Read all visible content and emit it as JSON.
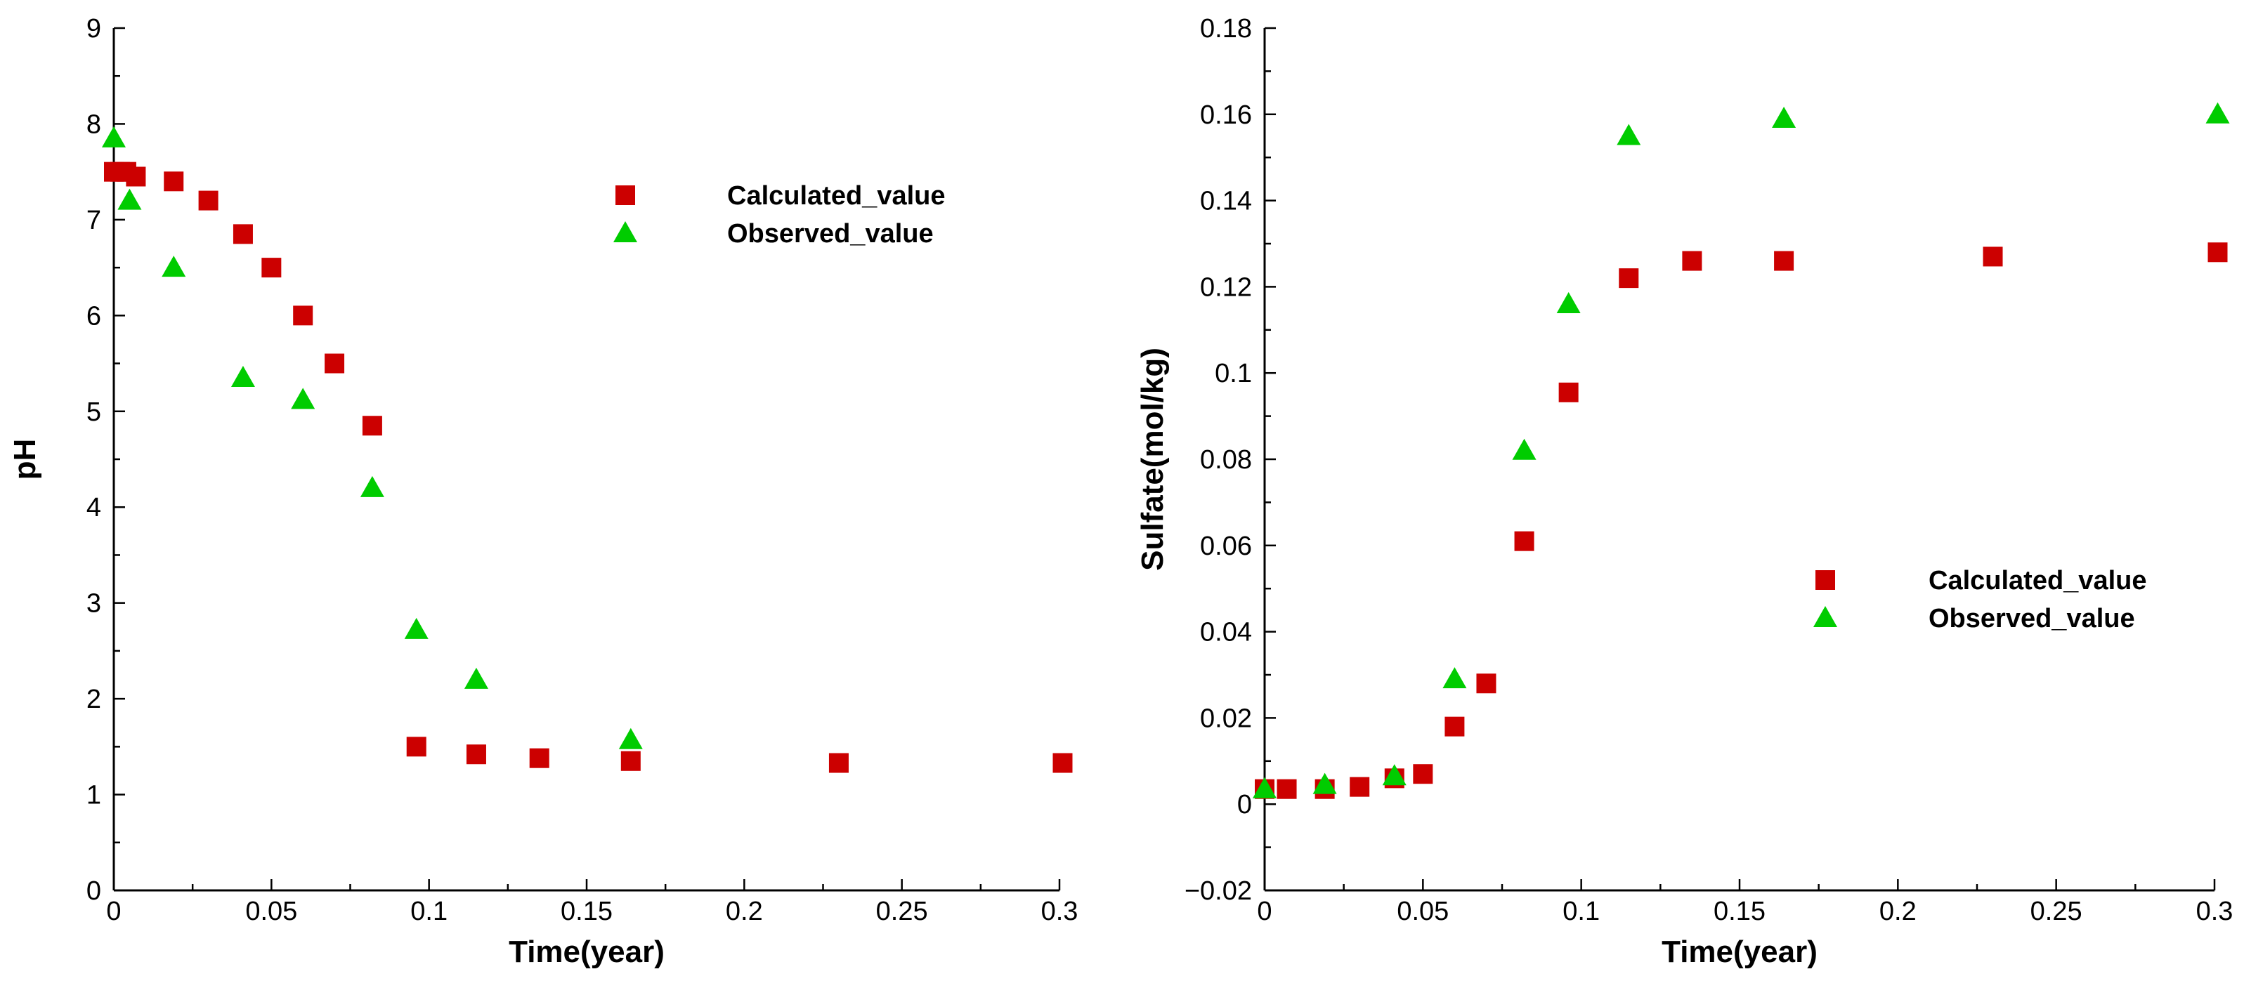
{
  "chart_data": [
    {
      "type": "scatter",
      "title": "",
      "xlabel": "Time(year)",
      "ylabel": "pH",
      "xlim": [
        0,
        0.3
      ],
      "ylim": [
        0,
        9
      ],
      "xticks": [
        "0",
        "0.05",
        "0.1",
        "0.15",
        "0.2",
        "0.25",
        "0.3"
      ],
      "yticks": [
        "0",
        "1",
        "2",
        "3",
        "4",
        "5",
        "6",
        "7",
        "8",
        "9"
      ],
      "grid": false,
      "legend_position": "top-right",
      "series": [
        {
          "name": "Calculated_value",
          "marker": "square",
          "color": "#cc0000",
          "x": [
            0.0,
            0.002,
            0.004,
            0.007,
            0.019,
            0.03,
            0.041,
            0.05,
            0.06,
            0.07,
            0.082,
            0.096,
            0.115,
            0.135,
            0.164,
            0.23,
            0.301
          ],
          "y": [
            7.5,
            7.5,
            7.5,
            7.45,
            7.4,
            7.2,
            6.85,
            6.5,
            6.0,
            5.5,
            4.85,
            1.5,
            1.42,
            1.38,
            1.35,
            1.33,
            1.33
          ]
        },
        {
          "name": "Observed_value",
          "marker": "triangle",
          "color": "#00cc00",
          "x": [
            0.0,
            0.005,
            0.019,
            0.041,
            0.06,
            0.082,
            0.096,
            0.115,
            0.164
          ],
          "y": [
            7.85,
            7.2,
            6.5,
            5.35,
            5.12,
            4.2,
            2.72,
            2.2,
            1.57
          ]
        }
      ]
    },
    {
      "type": "scatter",
      "title": "",
      "xlabel": "Time(year)",
      "ylabel": "Sulfate(mol/kg)",
      "xlim": [
        0,
        0.3
      ],
      "ylim": [
        -0.02,
        0.18
      ],
      "xticks": [
        "0",
        "0.05",
        "0.1",
        "0.15",
        "0.2",
        "0.25",
        "0.3"
      ],
      "yticks": [
        "−0.02",
        "0",
        "0.02",
        "0.04",
        "0.06",
        "0.08",
        "0.1",
        "0.12",
        "0.14",
        "0.16",
        "0.18"
      ],
      "grid": false,
      "legend_position": "right",
      "series": [
        {
          "name": "Calculated_value",
          "marker": "square",
          "color": "#cc0000",
          "x": [
            0.0,
            0.007,
            0.019,
            0.03,
            0.041,
            0.05,
            0.06,
            0.07,
            0.082,
            0.096,
            0.115,
            0.135,
            0.164,
            0.23,
            0.301
          ],
          "y": [
            0.0035,
            0.0035,
            0.0035,
            0.004,
            0.006,
            0.007,
            0.018,
            0.028,
            0.061,
            0.0955,
            0.122,
            0.126,
            0.126,
            0.127,
            0.128
          ]
        },
        {
          "name": "Observed_value",
          "marker": "triangle",
          "color": "#00cc00",
          "x": [
            0.0,
            0.019,
            0.041,
            0.06,
            0.082,
            0.096,
            0.115,
            0.164,
            0.301
          ],
          "y": [
            0.0035,
            0.0045,
            0.0065,
            0.029,
            0.082,
            0.116,
            0.155,
            0.159,
            0.16
          ]
        }
      ]
    }
  ]
}
